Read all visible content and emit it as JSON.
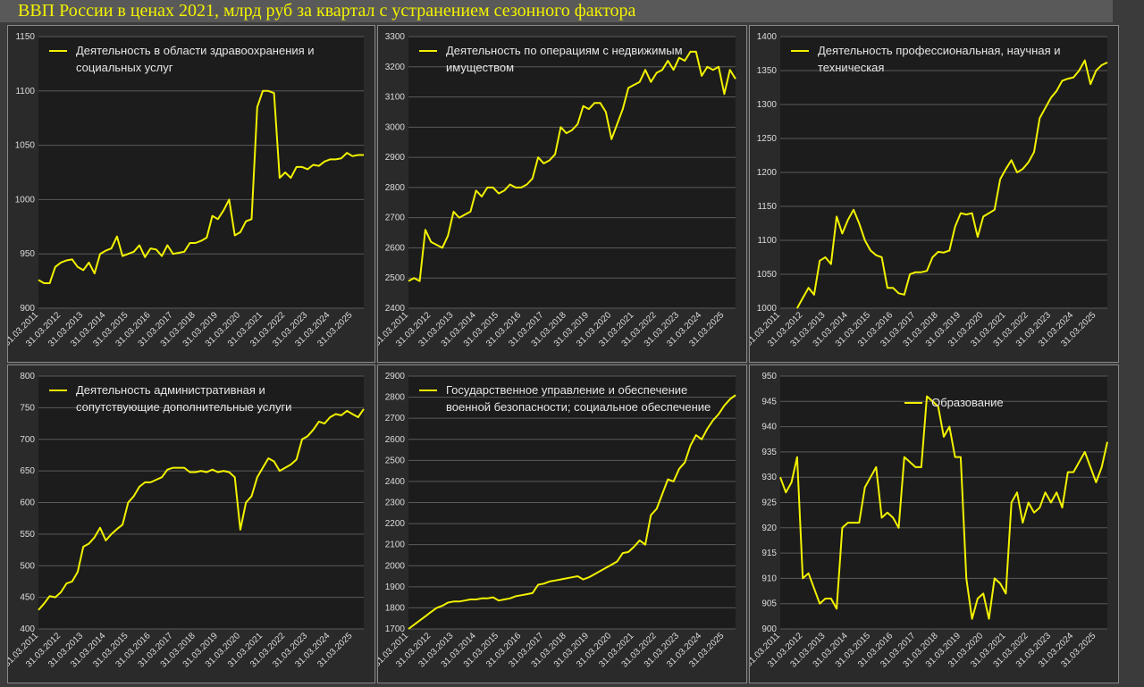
{
  "title": "ВВП России в ценах 2021, млрд руб за квартал с устранением сезонного фактора",
  "chart_data": [
    {
      "type": "line",
      "legend": "top-left",
      "grid": true,
      "categories": [
        "31.03.2011",
        null,
        null,
        null,
        "31.03.2012",
        null,
        null,
        null,
        "31.03.2013",
        null,
        null,
        null,
        "31.03.2014",
        null,
        null,
        null,
        "31.03.2015",
        null,
        null,
        null,
        "31.03.2016",
        null,
        null,
        null,
        "31.03.2017",
        null,
        null,
        null,
        "31.03.2018",
        null,
        null,
        null,
        "31.03.2019",
        null,
        null,
        null,
        "31.03.2020",
        null,
        null,
        null,
        "31.03.2021",
        null,
        null,
        null,
        "31.03.2022",
        null,
        null,
        null,
        "31.03.2023",
        null,
        null,
        null,
        "31.03.2024",
        null,
        null,
        null,
        "31.03.2025",
        null,
        null
      ],
      "ylim": [
        900,
        1150
      ],
      "yticks": [
        900,
        950,
        1000,
        1050,
        1100,
        1150
      ],
      "series": [
        {
          "name": "Деятельность в области здравоохранения и социальных услуг",
          "color": "#f2f200",
          "values": [
            926,
            923,
            923,
            938,
            942,
            944,
            945,
            938,
            935,
            942,
            932,
            950,
            953,
            955,
            966,
            948,
            950,
            952,
            958,
            947,
            955,
            954,
            948,
            958,
            950,
            951,
            952,
            960,
            960,
            962,
            965,
            985,
            982,
            990,
            1000,
            967,
            970,
            980,
            982,
            1085,
            1100,
            1100,
            1098,
            1020,
            1025,
            1020,
            1030,
            1030,
            1028,
            1032,
            1031,
            1035,
            1037,
            1037,
            1038,
            1043,
            1040,
            1041,
            1041
          ]
        }
      ]
    },
    {
      "type": "line",
      "legend": "top-left",
      "grid": true,
      "categories": [
        "31.03.2011",
        null,
        null,
        null,
        "31.03.2012",
        null,
        null,
        null,
        "31.03.2013",
        null,
        null,
        null,
        "31.03.2014",
        null,
        null,
        null,
        "31.03.2015",
        null,
        null,
        null,
        "31.03.2016",
        null,
        null,
        null,
        "31.03.2017",
        null,
        null,
        null,
        "31.03.2018",
        null,
        null,
        null,
        "31.03.2019",
        null,
        null,
        null,
        "31.03.2020",
        null,
        null,
        null,
        "31.03.2021",
        null,
        null,
        null,
        "31.03.2022",
        null,
        null,
        null,
        "31.03.2023",
        null,
        null,
        null,
        "31.03.2024",
        null,
        null,
        null,
        "31.03.2025",
        null,
        null
      ],
      "ylim": [
        2400,
        3300
      ],
      "yticks": [
        2400,
        2500,
        2600,
        2700,
        2800,
        2900,
        3000,
        3100,
        3200,
        3300
      ],
      "series": [
        {
          "name": "Деятельность по операциям с недвижимым имуществом",
          "color": "#f2f200",
          "values": [
            2490,
            2500,
            2490,
            2660,
            2620,
            2610,
            2600,
            2640,
            2720,
            2700,
            2710,
            2720,
            2790,
            2770,
            2800,
            2800,
            2780,
            2790,
            2810,
            2800,
            2800,
            2810,
            2830,
            2900,
            2880,
            2890,
            2910,
            3000,
            2980,
            2990,
            3010,
            3070,
            3060,
            3080,
            3080,
            3050,
            2960,
            3010,
            3060,
            3130,
            3140,
            3150,
            3190,
            3150,
            3180,
            3190,
            3220,
            3190,
            3230,
            3220,
            3250,
            3250,
            3170,
            3200,
            3190,
            3200,
            3110,
            3190,
            3160
          ]
        }
      ]
    },
    {
      "type": "line",
      "legend": "top-left",
      "grid": true,
      "categories": [
        "31.03.2011",
        null,
        null,
        null,
        "31.03.2012",
        null,
        null,
        null,
        "31.03.2013",
        null,
        null,
        null,
        "31.03.2014",
        null,
        null,
        null,
        "31.03.2015",
        null,
        null,
        null,
        "31.03.2016",
        null,
        null,
        null,
        "31.03.2017",
        null,
        null,
        null,
        "31.03.2018",
        null,
        null,
        null,
        "31.03.2019",
        null,
        null,
        null,
        "31.03.2020",
        null,
        null,
        null,
        "31.03.2021",
        null,
        null,
        null,
        "31.03.2022",
        null,
        null,
        null,
        "31.03.2023",
        null,
        null,
        null,
        "31.03.2024",
        null,
        null,
        null,
        "31.03.2025",
        null,
        null
      ],
      "ylim": [
        1000,
        1400
      ],
      "yticks": [
        1000,
        1050,
        1100,
        1150,
        1200,
        1250,
        1300,
        1350,
        1400
      ],
      "series": [
        {
          "name": "Деятельность профессиональная, научная и техническая",
          "color": "#f2f200",
          "values": [
            null,
            null,
            null,
            1000,
            1015,
            1030,
            1020,
            1070,
            1075,
            1065,
            1135,
            1110,
            1130,
            1145,
            1125,
            1100,
            1085,
            1078,
            1075,
            1030,
            1030,
            1022,
            1020,
            1050,
            1053,
            1053,
            1055,
            1075,
            1083,
            1082,
            1085,
            1120,
            1140,
            1138,
            1140,
            1105,
            1135,
            1140,
            1145,
            1190,
            1205,
            1218,
            1200,
            1205,
            1215,
            1230,
            1280,
            1295,
            1310,
            1320,
            1335,
            1338,
            1340,
            1350,
            1365,
            1330,
            1350,
            1358,
            1362
          ]
        }
      ]
    },
    {
      "type": "line",
      "legend": "top-left",
      "grid": true,
      "categories": [
        "31.03.2011",
        null,
        null,
        null,
        "31.03.2012",
        null,
        null,
        null,
        "31.03.2013",
        null,
        null,
        null,
        "31.03.2014",
        null,
        null,
        null,
        "31.03.2015",
        null,
        null,
        null,
        "31.03.2016",
        null,
        null,
        null,
        "31.03.2017",
        null,
        null,
        null,
        "31.03.2018",
        null,
        null,
        null,
        "31.03.2019",
        null,
        null,
        null,
        "31.03.2020",
        null,
        null,
        null,
        "31.03.2021",
        null,
        null,
        null,
        "31.03.2022",
        null,
        null,
        null,
        "31.03.2023",
        null,
        null,
        null,
        "31.03.2024",
        null,
        null,
        null,
        "31.03.2025",
        null,
        null
      ],
      "ylim": [
        400,
        800
      ],
      "yticks": [
        400,
        450,
        500,
        550,
        600,
        650,
        700,
        750,
        800
      ],
      "series": [
        {
          "name": "Деятельность административная и сопутствующие дополнительные услуги",
          "color": "#f2f200",
          "values": [
            430,
            440,
            452,
            450,
            458,
            472,
            475,
            490,
            530,
            535,
            545,
            560,
            540,
            550,
            558,
            565,
            600,
            610,
            625,
            632,
            632,
            636,
            640,
            652,
            655,
            655,
            655,
            648,
            648,
            650,
            648,
            652,
            648,
            650,
            648,
            640,
            557,
            600,
            610,
            640,
            655,
            670,
            665,
            650,
            655,
            660,
            668,
            700,
            705,
            715,
            728,
            725,
            735,
            740,
            738,
            745,
            740,
            735,
            748
          ]
        }
      ]
    },
    {
      "type": "line",
      "legend": "top-left",
      "grid": true,
      "categories": [
        "31.03.2011",
        null,
        null,
        null,
        "31.03.2012",
        null,
        null,
        null,
        "31.03.2013",
        null,
        null,
        null,
        "31.03.2014",
        null,
        null,
        null,
        "31.03.2015",
        null,
        null,
        null,
        "31.03.2016",
        null,
        null,
        null,
        "31.03.2017",
        null,
        null,
        null,
        "31.03.2018",
        null,
        null,
        null,
        "31.03.2019",
        null,
        null,
        null,
        "31.03.2020",
        null,
        null,
        null,
        "31.03.2021",
        null,
        null,
        null,
        "31.03.2022",
        null,
        null,
        null,
        "31.03.2023",
        null,
        null,
        null,
        "31.03.2024",
        null,
        null,
        null,
        "31.03.2025",
        null,
        null
      ],
      "ylim": [
        1700,
        2900
      ],
      "yticks": [
        1700,
        1800,
        1900,
        2000,
        2100,
        2200,
        2300,
        2400,
        2500,
        2600,
        2700,
        2800,
        2900
      ],
      "series": [
        {
          "name": "Государственное управление и обеспечение военной безопасности; социальное обеспечение",
          "color": "#f2f200",
          "values": [
            1700,
            1720,
            1740,
            1760,
            1780,
            1800,
            1810,
            1825,
            1830,
            1830,
            1835,
            1840,
            1840,
            1845,
            1845,
            1850,
            1835,
            1840,
            1845,
            1855,
            1860,
            1865,
            1870,
            1910,
            1915,
            1925,
            1930,
            1935,
            1940,
            1945,
            1950,
            1935,
            1945,
            1960,
            1975,
            1990,
            2005,
            2020,
            2060,
            2065,
            2090,
            2120,
            2100,
            2240,
            2270,
            2340,
            2410,
            2400,
            2460,
            2490,
            2570,
            2620,
            2600,
            2650,
            2690,
            2720,
            2760,
            2790,
            2810
          ]
        }
      ]
    },
    {
      "type": "line",
      "legend": "top-center",
      "grid": true,
      "categories": [
        "31.03.2011",
        null,
        null,
        null,
        "31.03.2012",
        null,
        null,
        null,
        "31.03.2013",
        null,
        null,
        null,
        "31.03.2014",
        null,
        null,
        null,
        "31.03.2015",
        null,
        null,
        null,
        "31.03.2016",
        null,
        null,
        null,
        "31.03.2017",
        null,
        null,
        null,
        "31.03.2018",
        null,
        null,
        null,
        "31.03.2019",
        null,
        null,
        null,
        "31.03.2020",
        null,
        null,
        null,
        "31.03.2021",
        null,
        null,
        null,
        "31.03.2022",
        null,
        null,
        null,
        "31.03.2023",
        null,
        null,
        null,
        "31.03.2024",
        null,
        null,
        null,
        "31.03.2025",
        null,
        null
      ],
      "ylim": [
        900,
        950
      ],
      "yticks": [
        900,
        905,
        910,
        915,
        920,
        925,
        930,
        935,
        940,
        945,
        950
      ],
      "series": [
        {
          "name": "Образование",
          "color": "#f2f200",
          "values": [
            930,
            927,
            929,
            934,
            910,
            911,
            908,
            905,
            906,
            906,
            904,
            920,
            921,
            921,
            921,
            928,
            930,
            932,
            922,
            923,
            922,
            920,
            934,
            933,
            932,
            932,
            946,
            945,
            944,
            938,
            940,
            934,
            934,
            910,
            902,
            906,
            907,
            902,
            910,
            909,
            907,
            925,
            927,
            921,
            925,
            923,
            924,
            927,
            925,
            927,
            924,
            931,
            931,
            933,
            935,
            932,
            929,
            932,
            937
          ]
        }
      ]
    }
  ]
}
